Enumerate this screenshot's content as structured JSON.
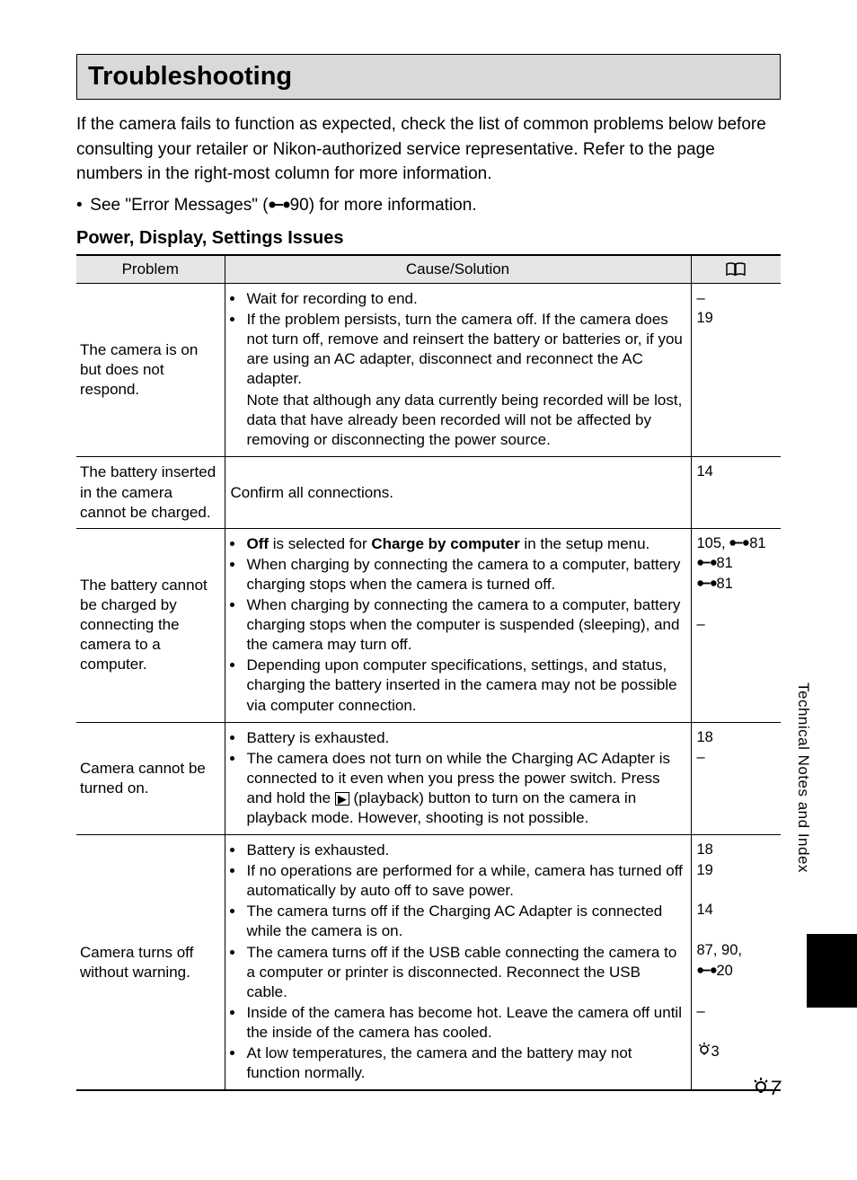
{
  "page": {
    "title": "Troubleshooting",
    "intro": "If the camera fails to function as expected, check the list of common problems below before consulting your retailer or Nikon-authorized service representative. Refer to the page numbers in the right-most column for more information.",
    "see_prefix": "See \"Error Messages\" (",
    "see_ref_num": "90",
    "see_suffix": ") for more information.",
    "section_heading": "Power, Display, Settings Issues",
    "side_label": "Technical Notes and Index",
    "page_number": "7"
  },
  "table": {
    "headers": {
      "problem": "Problem",
      "cause": "Cause/Solution"
    },
    "rows": [
      {
        "problem": "The camera is on but does not respond.",
        "causes": [
          {
            "text": "Wait for recording to end."
          },
          {
            "text": "If the problem persists, turn the camera off. If the camera does not turn off, remove and reinsert the battery or batteries or, if you are using an AC adapter, disconnect and reconnect the AC adapter.",
            "note": "Note that although any data currently being recorded will be lost, data that have already been recorded will not be affected by removing or disconnecting the power source."
          }
        ],
        "refs": [
          {
            "text": "–"
          },
          {
            "text": "19"
          }
        ]
      },
      {
        "problem": "The battery inserted in the camera cannot be charged.",
        "plain": "Confirm all connections.",
        "refs": [
          {
            "text": "14"
          }
        ]
      },
      {
        "problem": "The battery cannot be charged by connecting the camera to a computer.",
        "causes": [
          {
            "rich_off_charge": true,
            "suffix": " in the setup menu."
          },
          {
            "text": "When charging by connecting the camera to a computer, battery charging stops when the camera is turned off."
          },
          {
            "text": "When charging by connecting the camera to a computer, battery charging stops when the computer is suspended (sleeping), and the camera may turn off."
          },
          {
            "text": "Depending upon computer specifications, settings, and status, charging the battery inserted in the camera may not be possible via computer connection."
          }
        ],
        "refs": [
          {
            "text": "105, ",
            "ref_icon": true,
            "after": "81"
          },
          {
            "ref_icon": true,
            "after": "81"
          },
          {
            "ref_icon": true,
            "after": "81"
          },
          {
            "blank": true
          },
          {
            "text": "–"
          }
        ]
      },
      {
        "problem": "Camera cannot be turned on.",
        "causes": [
          {
            "text": "Battery is exhausted."
          },
          {
            "playback": true,
            "pre": "The camera does not turn on while the Charging AC Adapter is connected to it even when you press the power switch. Press and hold the ",
            "post": " (playback) button to turn on the camera in playback mode. However, shooting is not possible."
          }
        ],
        "refs": [
          {
            "text": "18"
          },
          {
            "text": "–"
          }
        ]
      },
      {
        "problem": "Camera turns off without warning.",
        "causes": [
          {
            "text": "Battery is exhausted."
          },
          {
            "text": "If no operations are performed for a while, camera has turned off automatically by auto off to save power."
          },
          {
            "text": "The camera turns off if the Charging AC Adapter is connected while the camera is on."
          },
          {
            "text": "The camera turns off if the USB cable connecting the camera to a computer or printer is disconnected. Reconnect the USB cable."
          },
          {
            "text": "Inside of the camera has become hot. Leave the camera off until the inside of the camera has cooled."
          },
          {
            "text": "At low temperatures, the camera and the battery may not function normally."
          }
        ],
        "refs": [
          {
            "text": "18"
          },
          {
            "text": "19"
          },
          {
            "blank": true
          },
          {
            "text": "14"
          },
          {
            "blank": true
          },
          {
            "text": "87, 90,"
          },
          {
            "ref_icon": true,
            "after": "20"
          },
          {
            "blank": true
          },
          {
            "text": "–"
          },
          {
            "blank": true
          },
          {
            "lamp_icon": true,
            "after": "3"
          }
        ]
      }
    ]
  },
  "strings": {
    "off": "Off",
    "is_selected_for": " is selected for ",
    "charge_by_computer": "Charge by computer"
  }
}
